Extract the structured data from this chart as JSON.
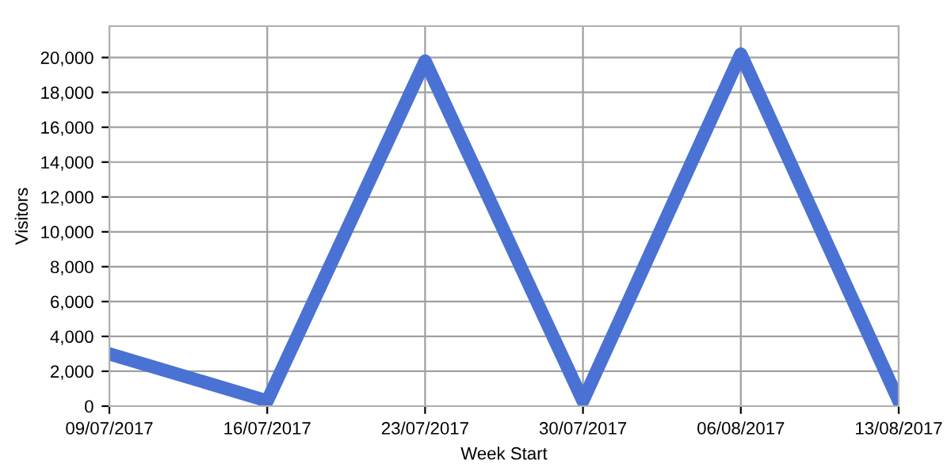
{
  "chart_data": {
    "type": "line",
    "xlabel": "Week Start",
    "ylabel": "Visitors",
    "categories": [
      "09/07/2017",
      "16/07/2017",
      "23/07/2017",
      "30/07/2017",
      "06/08/2017",
      "13/08/2017"
    ],
    "series": [
      {
        "color": "#4a72d4",
        "values": [
          3000,
          300,
          19800,
          300,
          20200,
          300
        ]
      }
    ],
    "ylim": [
      0,
      21800
    ],
    "yticks": [
      {
        "value": 0,
        "label": "0"
      },
      {
        "value": 2000,
        "label": "2,000"
      },
      {
        "value": 4000,
        "label": "4,000"
      },
      {
        "value": 6000,
        "label": "6,000"
      },
      {
        "value": 8000,
        "label": "8,000"
      },
      {
        "value": 10000,
        "label": "10,000"
      },
      {
        "value": 12000,
        "label": "12,000"
      },
      {
        "value": 14000,
        "label": "14,000"
      },
      {
        "value": 16000,
        "label": "16,000"
      },
      {
        "value": 18000,
        "label": "18,000"
      },
      {
        "value": 20000,
        "label": "20,000"
      }
    ],
    "grid": true,
    "marker": "none",
    "line_style": "solid"
  }
}
